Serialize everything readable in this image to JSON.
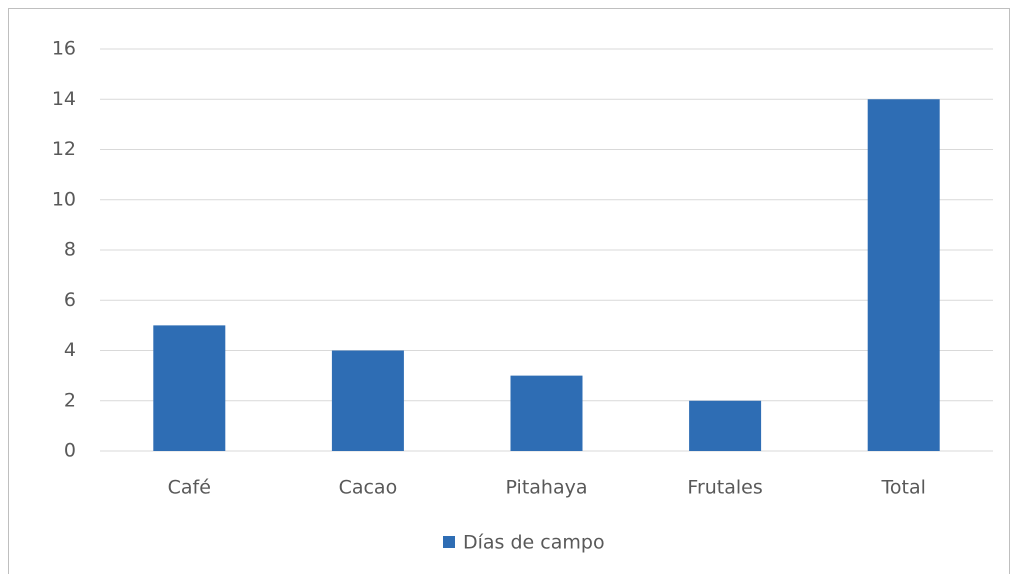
{
  "chart_data": {
    "type": "bar",
    "categories": [
      "Café",
      "Cacao",
      "Pitahaya",
      "Frutales",
      "Total"
    ],
    "series": [
      {
        "name": "Días de campo",
        "color": "#2e6db4",
        "values": [
          5,
          4,
          3,
          2,
          14
        ]
      }
    ],
    "ylim": [
      0,
      16
    ],
    "yticks": [
      0,
      2,
      4,
      6,
      8,
      10,
      12,
      14,
      16
    ],
    "grid": true,
    "legend": "bottom"
  }
}
